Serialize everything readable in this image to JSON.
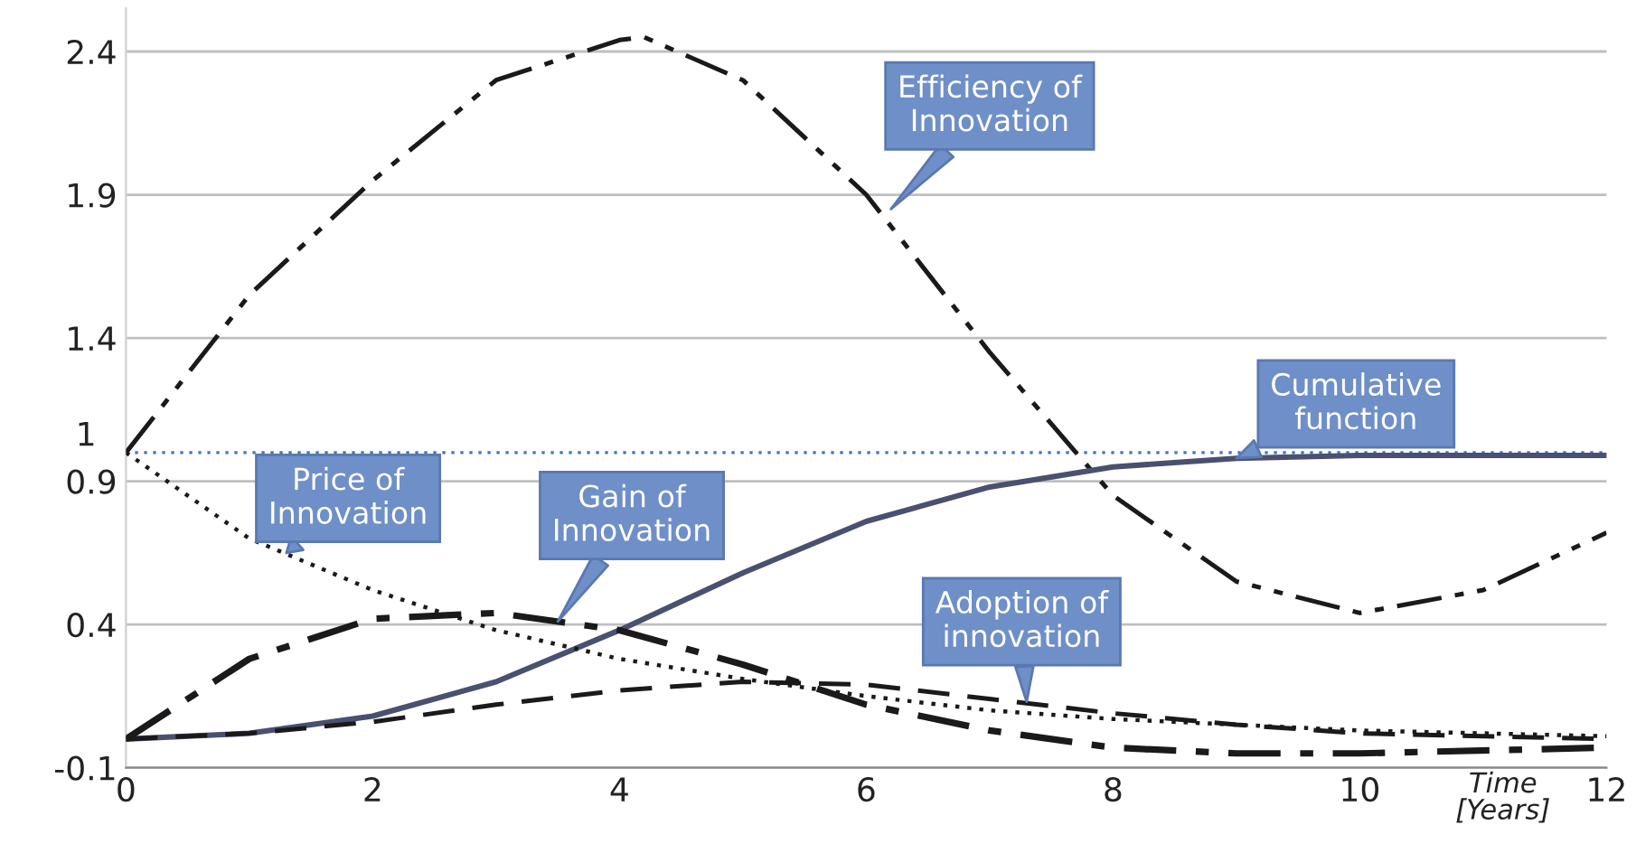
{
  "chart_data": {
    "type": "line",
    "xlabel": "Time\n[Years]",
    "xlim": [
      0,
      12
    ],
    "xticks": [
      0,
      2,
      4,
      6,
      8,
      10,
      12
    ],
    "ylim": [
      -0.1,
      2.55
    ],
    "yticks": [
      -0.1,
      0.4,
      0.9,
      1.4,
      1.9,
      2.4
    ],
    "grid": "y",
    "ref_lines": [
      {
        "axis": "y",
        "value": 1,
        "label": "1",
        "color": "#4472c4",
        "line_style": "dotted"
      }
    ],
    "series": [
      {
        "color": "#1a1a1a",
        "line_style": "dashdotdot",
        "x": [
          0,
          1,
          2,
          3,
          4,
          4.2,
          5,
          6,
          7,
          8,
          9,
          10,
          11,
          12
        ],
        "values": [
          1.0,
          1.55,
          1.95,
          2.3,
          2.44,
          2.45,
          2.3,
          1.9,
          1.35,
          0.85,
          0.55,
          0.44,
          0.52,
          0.72
        ]
      },
      {
        "color": "#4a5070",
        "line_style": "solid",
        "x": [
          0,
          1,
          2,
          3,
          4,
          5,
          6,
          7,
          8,
          9,
          10,
          12
        ],
        "values": [
          0.0,
          0.02,
          0.08,
          0.2,
          0.38,
          0.58,
          0.76,
          0.88,
          0.95,
          0.98,
          0.99,
          0.99
        ]
      },
      {
        "color": "#1a1a1a",
        "line_style": "dotted",
        "x": [
          0,
          1,
          2,
          3,
          4,
          5,
          6,
          7,
          8,
          10,
          12
        ],
        "values": [
          1.0,
          0.7,
          0.52,
          0.38,
          0.28,
          0.21,
          0.15,
          0.1,
          0.07,
          0.03,
          0.01
        ]
      },
      {
        "color": "#1a1a1a",
        "line_style": "dashdot",
        "x": [
          0,
          1,
          2,
          3,
          4,
          5,
          6,
          7,
          8,
          9,
          10,
          12
        ],
        "values": [
          0.0,
          0.28,
          0.42,
          0.44,
          0.38,
          0.26,
          0.12,
          0.03,
          -0.03,
          -0.05,
          -0.05,
          -0.03
        ]
      },
      {
        "color": "#1a1a1a",
        "line_style": "dashed",
        "x": [
          0,
          1,
          2,
          3,
          4,
          5,
          6,
          7,
          8,
          9,
          10,
          12
        ],
        "values": [
          0.0,
          0.02,
          0.06,
          0.12,
          0.17,
          0.2,
          0.19,
          0.14,
          0.09,
          0.05,
          0.02,
          0.0
        ]
      }
    ],
    "annotations": [
      {
        "text": "Efficiency of\nInnovation",
        "x": 6.2,
        "y": 1.85
      },
      {
        "text": "Cumulative\nfunction",
        "x": 9.0,
        "y": 0.98
      },
      {
        "text": "Price of\nInnovation",
        "x": 1.3,
        "y": 0.65
      },
      {
        "text": "Gain of\nInnovation",
        "x": 3.5,
        "y": 0.41
      },
      {
        "text": "Adoption of\ninnovation",
        "x": 7.3,
        "y": 0.13
      }
    ]
  }
}
